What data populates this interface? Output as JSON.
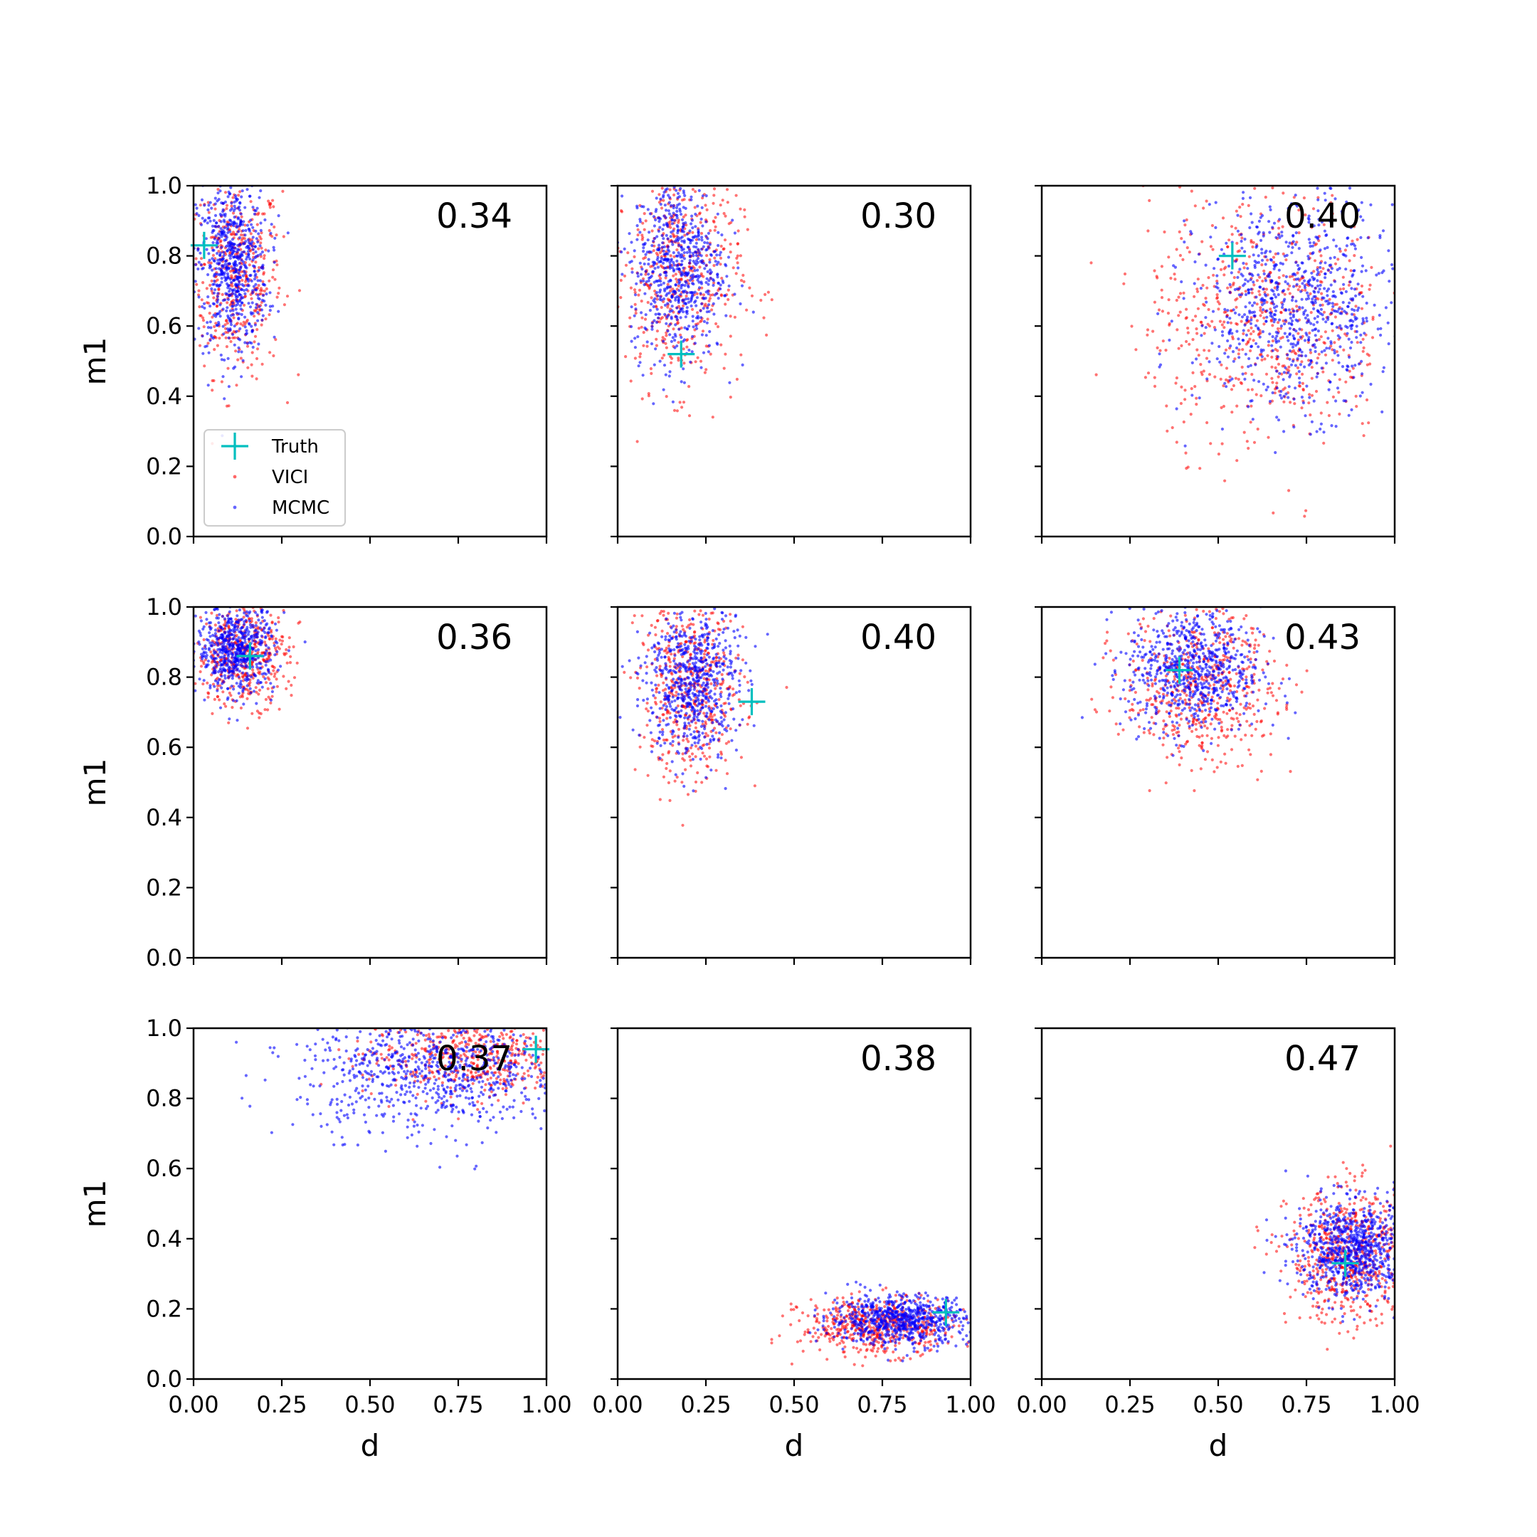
{
  "chart_data": {
    "type": "scatter",
    "layout": "3x3 grid of panels, shared x and y axes",
    "xlabel": "d",
    "ylabel": "m1",
    "xlim": [
      0,
      1
    ],
    "ylim": [
      0,
      1
    ],
    "x_ticks": [
      "0.00",
      "0.25",
      "0.50",
      "0.75",
      "1.00"
    ],
    "y_ticks": [
      "0.0",
      "0.2",
      "0.4",
      "0.6",
      "0.8",
      "1.0"
    ],
    "grid": false,
    "legend": {
      "placement": "lower-left of first panel",
      "entries": [
        {
          "label": "Truth",
          "marker": "plus",
          "color": "#00bfbf"
        },
        {
          "label": "VICI",
          "marker": "dot",
          "color": "#ff0000"
        },
        {
          "label": "MCMC",
          "marker": "dot",
          "color": "#0000ff"
        }
      ]
    },
    "colors": {
      "truth": "#00bfbf",
      "vici": "#ff0000",
      "mcmc": "#0000ff"
    },
    "panels": [
      {
        "score": "0.34",
        "truth": {
          "d": 0.03,
          "m1": 0.83
        },
        "series": [
          {
            "name": "VICI",
            "clusters": [
              {
                "cx": 0.12,
                "cy": 0.74,
                "sx": 0.065,
                "sy": 0.14,
                "n": 450
              }
            ]
          },
          {
            "name": "MCMC",
            "clusters": [
              {
                "cx": 0.11,
                "cy": 0.77,
                "sx": 0.05,
                "sy": 0.12,
                "n": 650
              }
            ]
          }
        ]
      },
      {
        "score": "0.30",
        "truth": {
          "d": 0.18,
          "m1": 0.52
        },
        "series": [
          {
            "name": "VICI",
            "clusters": [
              {
                "cx": 0.17,
                "cy": 0.74,
                "sx": 0.09,
                "sy": 0.16,
                "n": 500
              }
            ]
          },
          {
            "name": "MCMC",
            "clusters": [
              {
                "cx": 0.17,
                "cy": 0.77,
                "sx": 0.065,
                "sy": 0.13,
                "n": 650
              }
            ]
          }
        ]
      },
      {
        "score": "0.40",
        "truth": {
          "d": 0.54,
          "m1": 0.8
        },
        "series": [
          {
            "name": "VICI",
            "clusters": [
              {
                "cx": 0.64,
                "cy": 0.62,
                "sx": 0.17,
                "sy": 0.18,
                "n": 650
              }
            ]
          },
          {
            "name": "MCMC",
            "clusters": [
              {
                "cx": 0.72,
                "cy": 0.66,
                "sx": 0.14,
                "sy": 0.15,
                "n": 800
              }
            ]
          }
        ]
      },
      {
        "score": "0.36",
        "truth": {
          "d": 0.16,
          "m1": 0.86
        },
        "series": [
          {
            "name": "VICI",
            "clusters": [
              {
                "cx": 0.14,
                "cy": 0.86,
                "sx": 0.065,
                "sy": 0.07,
                "n": 450
              }
            ]
          },
          {
            "name": "MCMC",
            "clusters": [
              {
                "cx": 0.12,
                "cy": 0.88,
                "sx": 0.055,
                "sy": 0.06,
                "n": 600
              }
            ]
          }
        ]
      },
      {
        "score": "0.40",
        "truth": {
          "d": 0.38,
          "m1": 0.73
        },
        "series": [
          {
            "name": "VICI",
            "clusters": [
              {
                "cx": 0.21,
                "cy": 0.76,
                "sx": 0.075,
                "sy": 0.13,
                "n": 500
              }
            ]
          },
          {
            "name": "MCMC",
            "clusters": [
              {
                "cx": 0.21,
                "cy": 0.79,
                "sx": 0.065,
                "sy": 0.11,
                "n": 650
              }
            ]
          }
        ]
      },
      {
        "score": "0.43",
        "truth": {
          "d": 0.39,
          "m1": 0.82
        },
        "series": [
          {
            "name": "VICI",
            "clusters": [
              {
                "cx": 0.45,
                "cy": 0.78,
                "sx": 0.11,
                "sy": 0.11,
                "n": 550
              }
            ]
          },
          {
            "name": "MCMC",
            "clusters": [
              {
                "cx": 0.43,
                "cy": 0.82,
                "sx": 0.095,
                "sy": 0.09,
                "n": 700
              }
            ]
          }
        ]
      },
      {
        "score": "0.37",
        "truth": {
          "d": 0.97,
          "m1": 0.94
        },
        "series": [
          {
            "name": "VICI",
            "clusters": [
              {
                "cx": 0.78,
                "cy": 0.92,
                "sx": 0.15,
                "sy": 0.06,
                "n": 500
              }
            ]
          },
          {
            "name": "MCMC",
            "clusters": [
              {
                "cx": 0.68,
                "cy": 0.88,
                "sx": 0.19,
                "sy": 0.09,
                "n": 800
              }
            ]
          }
        ]
      },
      {
        "score": "0.38",
        "truth": {
          "d": 0.93,
          "m1": 0.19
        },
        "series": [
          {
            "name": "VICI",
            "clusters": [
              {
                "cx": 0.74,
                "cy": 0.15,
                "sx": 0.11,
                "sy": 0.04,
                "n": 550
              }
            ]
          },
          {
            "name": "MCMC",
            "clusters": [
              {
                "cx": 0.8,
                "cy": 0.17,
                "sx": 0.1,
                "sy": 0.035,
                "n": 700
              }
            ]
          }
        ]
      },
      {
        "score": "0.47",
        "truth": {
          "d": 0.86,
          "m1": 0.33
        },
        "series": [
          {
            "name": "VICI",
            "clusters": [
              {
                "cx": 0.88,
                "cy": 0.35,
                "sx": 0.09,
                "sy": 0.095,
                "n": 650
              }
            ]
          },
          {
            "name": "MCMC",
            "clusters": [
              {
                "cx": 0.88,
                "cy": 0.37,
                "sx": 0.08,
                "sy": 0.07,
                "n": 800
              }
            ]
          }
        ]
      }
    ]
  }
}
